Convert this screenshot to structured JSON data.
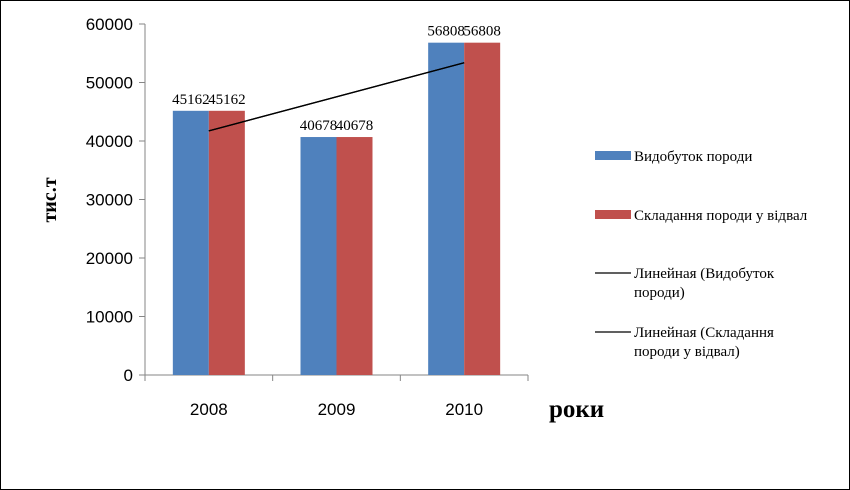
{
  "chart_data": {
    "type": "bar",
    "categories": [
      "2008",
      "2009",
      "2010"
    ],
    "series": [
      {
        "name": "Видобуток породи",
        "values": [
          45162,
          40678,
          56808
        ],
        "color": "#4f81bd"
      },
      {
        "name": "Складання породи у відвал",
        "values": [
          45162,
          40678,
          56808
        ],
        "color": "#c0504d"
      }
    ],
    "trendlines": [
      {
        "name": [
          "Линейная (Видобуток",
          "породи)"
        ],
        "type": "linear",
        "series": "Видобуток породи",
        "color": "#000000"
      },
      {
        "name": [
          "Линейная (Складання",
          "породи у відвал)"
        ],
        "type": "linear",
        "series": "Складання породи у відвал",
        "color": "#000000"
      }
    ],
    "ylabel": "тис.т",
    "xlabel": "роки",
    "ylim": [
      0,
      60000
    ],
    "yticks": [
      0,
      10000,
      20000,
      30000,
      40000,
      50000,
      60000
    ],
    "data_labels": true,
    "legend_position": "right",
    "grid": false
  }
}
